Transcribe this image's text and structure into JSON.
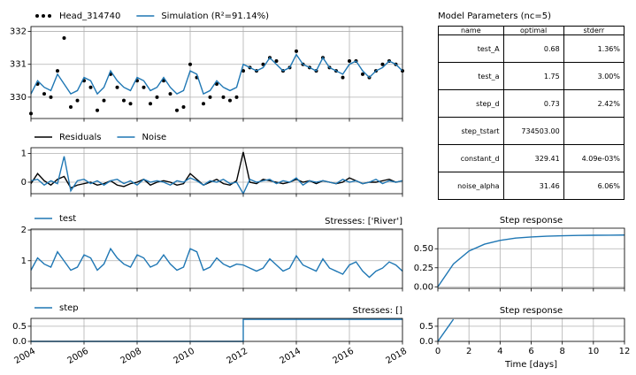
{
  "chart_data": [
    {
      "type": "line",
      "grid": true,
      "xlim": [
        2004,
        2018
      ],
      "ylim": [
        329.35,
        332.15
      ],
      "xticks": [
        2004,
        2006,
        2008,
        2010,
        2012,
        2014,
        2016,
        2018
      ],
      "yticks": [
        330,
        331,
        332
      ],
      "x": [
        2004,
        2004.25,
        2004.5,
        2004.75,
        2005,
        2005.25,
        2005.5,
        2005.75,
        2006,
        2006.25,
        2006.5,
        2006.75,
        2007,
        2007.25,
        2007.5,
        2007.75,
        2008,
        2008.25,
        2008.5,
        2008.75,
        2009,
        2009.25,
        2009.5,
        2009.75,
        2010,
        2010.25,
        2010.5,
        2010.75,
        2011,
        2011.25,
        2011.5,
        2011.75,
        2012,
        2012.25,
        2012.5,
        2012.75,
        2013,
        2013.25,
        2013.5,
        2013.75,
        2014,
        2014.25,
        2014.5,
        2014.75,
        2015,
        2015.25,
        2015.5,
        2015.75,
        2016,
        2016.25,
        2016.5,
        2016.75,
        2017,
        2017.25,
        2017.5,
        2017.75,
        2018
      ],
      "series": [
        {
          "name": "Head_314740",
          "type": "scatter",
          "color": "#000000",
          "values": [
            329.5,
            330.4,
            330.1,
            330.0,
            330.8,
            331.8,
            329.7,
            329.9,
            330.5,
            330.3,
            329.6,
            329.9,
            330.7,
            330.3,
            329.9,
            329.8,
            330.5,
            330.3,
            329.8,
            330.0,
            330.5,
            330.1,
            329.6,
            329.7,
            331.0,
            330.6,
            329.8,
            330.0,
            330.4,
            330.0,
            329.9,
            330.0,
            330.8,
            330.9,
            330.8,
            331.0,
            331.2,
            331.1,
            330.8,
            330.9,
            331.4,
            331.0,
            330.9,
            330.8,
            331.2,
            330.9,
            330.8,
            330.6,
            331.1,
            331.1,
            330.7,
            330.6,
            330.8,
            331.0,
            331.1,
            331.0,
            330.8
          ]
        },
        {
          "name": "Simulation (R²=91.14%)",
          "type": "line",
          "color": "#1f77b4",
          "values": [
            330.1,
            330.5,
            330.3,
            330.2,
            330.7,
            330.4,
            330.1,
            330.2,
            330.6,
            330.5,
            330.1,
            330.3,
            330.8,
            330.5,
            330.3,
            330.2,
            330.6,
            330.5,
            330.2,
            330.3,
            330.6,
            330.3,
            330.1,
            330.2,
            330.8,
            330.7,
            330.1,
            330.2,
            330.5,
            330.3,
            330.2,
            330.3,
            331.0,
            330.9,
            330.8,
            330.9,
            331.2,
            331.0,
            330.8,
            330.9,
            331.3,
            331.0,
            330.9,
            330.8,
            331.2,
            330.9,
            330.8,
            330.7,
            331.0,
            331.1,
            330.8,
            330.6,
            330.8,
            330.9,
            331.1,
            331.0,
            330.8
          ]
        }
      ]
    },
    {
      "type": "line",
      "grid": true,
      "xlim": [
        2004,
        2018
      ],
      "ylim": [
        -0.4,
        1.2
      ],
      "xticks": [
        2004,
        2006,
        2008,
        2010,
        2012,
        2014,
        2016,
        2018
      ],
      "yticks": [
        0,
        1
      ],
      "x": [
        2004,
        2004.25,
        2004.5,
        2004.75,
        2005,
        2005.25,
        2005.5,
        2005.75,
        2006,
        2006.25,
        2006.5,
        2006.75,
        2007,
        2007.25,
        2007.5,
        2007.75,
        2008,
        2008.25,
        2008.5,
        2008.75,
        2009,
        2009.25,
        2009.5,
        2009.75,
        2010,
        2010.25,
        2010.5,
        2010.75,
        2011,
        2011.25,
        2011.5,
        2011.75,
        2012,
        2012.25,
        2012.5,
        2012.75,
        2013,
        2013.25,
        2013.5,
        2013.75,
        2014,
        2014.25,
        2014.5,
        2014.75,
        2015,
        2015.25,
        2015.5,
        2015.75,
        2016,
        2016.25,
        2016.5,
        2016.75,
        2017,
        2017.25,
        2017.5,
        2017.75,
        2018
      ],
      "series": [
        {
          "name": "Residuals",
          "type": "line",
          "color": "#000000",
          "values": [
            -0.05,
            0.3,
            0.05,
            -0.1,
            0.1,
            0.2,
            -0.2,
            -0.1,
            -0.05,
            0.0,
            -0.1,
            -0.05,
            0.05,
            -0.1,
            -0.15,
            -0.05,
            0.0,
            0.1,
            -0.1,
            0.0,
            0.05,
            0.0,
            -0.1,
            -0.05,
            0.3,
            0.1,
            -0.1,
            0.0,
            0.1,
            -0.05,
            -0.1,
            0.05,
            1.05,
            0.0,
            -0.05,
            0.1,
            0.05,
            0.0,
            -0.05,
            0.0,
            0.1,
            0.0,
            0.05,
            -0.05,
            0.05,
            0.0,
            -0.05,
            0.0,
            0.15,
            0.05,
            -0.05,
            0.0,
            0.0,
            0.05,
            0.1,
            0.0,
            0.05
          ]
        },
        {
          "name": "Noise",
          "type": "line",
          "color": "#1f77b4",
          "values": [
            0.05,
            0.1,
            -0.1,
            0.05,
            -0.05,
            0.9,
            -0.3,
            0.05,
            0.1,
            -0.05,
            0.05,
            -0.1,
            0.05,
            0.1,
            -0.05,
            0.05,
            -0.1,
            0.1,
            0.0,
            0.05,
            0.0,
            -0.1,
            0.05,
            0.0,
            0.15,
            0.05,
            -0.1,
            0.05,
            0.0,
            0.1,
            -0.05,
            0.0,
            -0.4,
            0.1,
            0.0,
            0.05,
            0.1,
            -0.05,
            0.05,
            0.0,
            0.15,
            -0.1,
            0.05,
            0.0,
            0.05,
            0.0,
            -0.05,
            0.1,
            0.0,
            0.05,
            -0.05,
            0.0,
            0.1,
            -0.05,
            0.05,
            0.0,
            0.05
          ]
        }
      ]
    },
    {
      "type": "line",
      "grid": true,
      "title": "Stresses: ['River']",
      "title_loc": "right",
      "xlim": [
        2004,
        2018
      ],
      "ylim": [
        0.1,
        2.03
      ],
      "xticks": [
        2004,
        2006,
        2008,
        2010,
        2012,
        2014,
        2016,
        2018
      ],
      "yticks": [
        1,
        2
      ],
      "x": [
        2004,
        2004.25,
        2004.5,
        2004.75,
        2005,
        2005.25,
        2005.5,
        2005.75,
        2006,
        2006.25,
        2006.5,
        2006.75,
        2007,
        2007.25,
        2007.5,
        2007.75,
        2008,
        2008.25,
        2008.5,
        2008.75,
        2009,
        2009.25,
        2009.5,
        2009.75,
        2010,
        2010.25,
        2010.5,
        2010.75,
        2011,
        2011.25,
        2011.5,
        2011.75,
        2012,
        2012.25,
        2012.5,
        2012.75,
        2013,
        2013.25,
        2013.5,
        2013.75,
        2014,
        2014.25,
        2014.5,
        2014.75,
        2015,
        2015.25,
        2015.5,
        2015.75,
        2016,
        2016.25,
        2016.5,
        2016.75,
        2017,
        2017.25,
        2017.5,
        2017.75,
        2018
      ],
      "series": [
        {
          "name": "test",
          "type": "line",
          "color": "#1f77b4",
          "values": [
            0.69,
            1.09,
            0.89,
            0.79,
            1.29,
            0.99,
            0.69,
            0.79,
            1.19,
            1.09,
            0.69,
            0.89,
            1.39,
            1.09,
            0.89,
            0.79,
            1.19,
            1.09,
            0.79,
            0.89,
            1.19,
            0.89,
            0.69,
            0.79,
            1.39,
            1.29,
            0.69,
            0.79,
            1.09,
            0.89,
            0.79,
            0.89,
            0.86,
            0.76,
            0.66,
            0.76,
            1.06,
            0.86,
            0.66,
            0.76,
            1.16,
            0.86,
            0.76,
            0.66,
            1.06,
            0.76,
            0.66,
            0.56,
            0.86,
            0.96,
            0.66,
            0.46,
            0.66,
            0.76,
            0.96,
            0.86,
            0.66
          ]
        }
      ]
    },
    {
      "type": "line",
      "grid": true,
      "title": "Stresses: []",
      "title_loc": "right",
      "xlim": [
        2004,
        2018
      ],
      "ylim": [
        0,
        0.76
      ],
      "xticks": [
        2004,
        2006,
        2008,
        2010,
        2012,
        2014,
        2016,
        2018
      ],
      "yticks": [
        {
          "value": 0,
          "label": "0.0"
        },
        {
          "value": 0.5,
          "label": "0.5"
        }
      ],
      "x": [
        2004,
        2012,
        2012,
        2018
      ],
      "series": [
        {
          "name": "step",
          "type": "line",
          "color": "#1f77b4",
          "values": [
            0,
            0,
            0.73,
            0.73
          ]
        }
      ]
    },
    {
      "type": "line",
      "grid": true,
      "title": "Step response",
      "title_loc": "center",
      "xlim": [
        0,
        12
      ],
      "ylim": [
        -0.02,
        0.77
      ],
      "xticks": [
        0,
        2,
        4,
        6,
        8,
        10,
        12
      ],
      "yticks": [
        {
          "value": 0,
          "label": "0.00"
        },
        {
          "value": 0.25,
          "label": "0.25"
        },
        {
          "value": 0.5,
          "label": "0.50"
        }
      ],
      "x": [
        0,
        1,
        2,
        3,
        4,
        5,
        6,
        7,
        8,
        9,
        10,
        11,
        12
      ],
      "series": [
        {
          "type": "line",
          "color": "#1f77b4",
          "values": [
            0,
            0.3,
            0.47,
            0.56,
            0.61,
            0.64,
            0.655,
            0.665,
            0.67,
            0.675,
            0.677,
            0.678,
            0.68
          ]
        }
      ]
    },
    {
      "type": "line",
      "grid": true,
      "title": "Step response",
      "title_loc": "center",
      "xlabel": "Time [days]",
      "xlim": [
        0,
        12
      ],
      "ylim": [
        0,
        0.76
      ],
      "xticks": [
        0,
        2,
        4,
        6,
        8,
        10,
        12
      ],
      "yticks": [
        {
          "value": 0,
          "label": "0.0"
        },
        {
          "value": 0.5,
          "label": "0.5"
        }
      ],
      "x": [
        0,
        1
      ],
      "series": [
        {
          "type": "line",
          "color": "#1f77b4",
          "values": [
            0,
            0.73
          ]
        }
      ]
    }
  ],
  "table": {
    "title": "Model Parameters (nc=5)",
    "columns": [
      "name",
      "optimal",
      "stderr"
    ],
    "rows": [
      [
        "test_A",
        "0.68",
        "1.36%"
      ],
      [
        "test_a",
        "1.75",
        "3.00%"
      ],
      [
        "step_d",
        "0.73",
        "2.42%"
      ],
      [
        "step_tstart",
        "734503.00",
        null
      ],
      [
        "constant_d",
        "329.41",
        "4.09e-03%"
      ],
      [
        "noise_alpha",
        "31.46",
        "6.06%"
      ]
    ]
  }
}
